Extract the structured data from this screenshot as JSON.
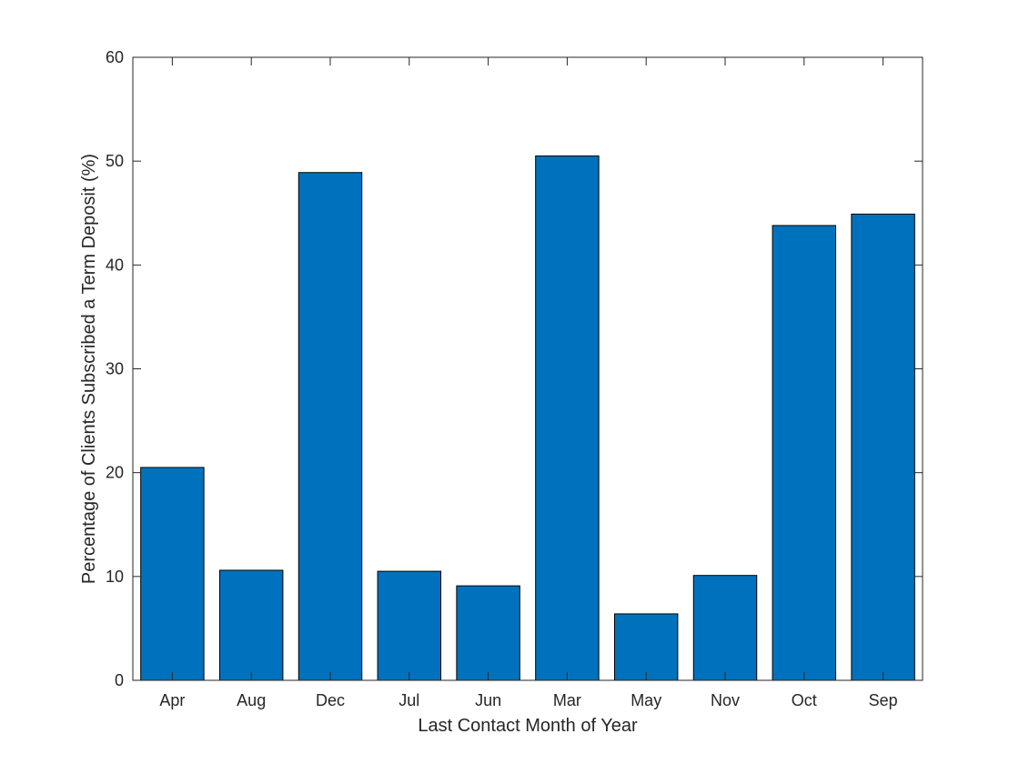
{
  "chart_data": {
    "type": "bar",
    "title": "",
    "xlabel": "Last Contact Month of Year",
    "ylabel": "Percentage of Clients Subscribed a Term Deposit (%)",
    "categories": [
      "Apr",
      "Aug",
      "Dec",
      "Jul",
      "Jun",
      "Mar",
      "May",
      "Nov",
      "Oct",
      "Sep"
    ],
    "values": [
      20.5,
      10.6,
      48.9,
      10.5,
      9.1,
      50.5,
      6.4,
      10.1,
      43.8,
      44.9
    ],
    "ylim": [
      0,
      60
    ],
    "yticks": [
      0,
      10,
      20,
      30,
      40,
      50,
      60
    ],
    "bar_color": "#0072BD",
    "grid": false,
    "box": true
  }
}
